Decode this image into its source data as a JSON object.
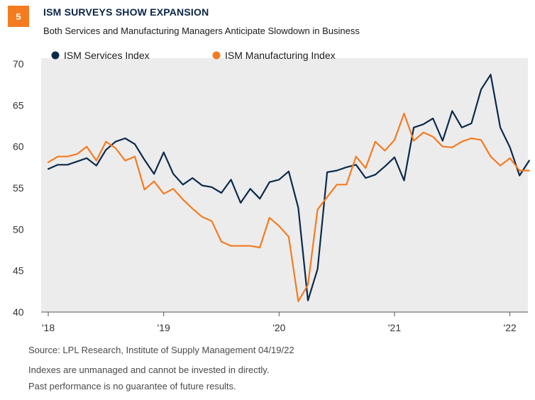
{
  "header": {
    "badge": "5",
    "title": "ISM SURVEYS SHOW EXPANSION",
    "subtitle": "Both Services and Manufacturing Managers Anticipate Slowdown in Business"
  },
  "footnotes": [
    "Source: LPL Research, Institute of Supply Management 04/19/22",
    "Indexes are unmanaged and cannot be invested in directly.",
    "Past performance is no guarantee of future results."
  ],
  "colors": {
    "services": "#0b2a4a",
    "manufacturing": "#f47b20",
    "badge": "#f47b20",
    "plot_bg": "#ececec"
  },
  "chart_data": {
    "type": "line",
    "title": "ISM SURVEYS SHOW EXPANSION",
    "subtitle": "Both Services and Manufacturing Managers Anticipate Slowdown in Business",
    "xlabel": "",
    "ylabel": "",
    "ylim": [
      40,
      70
    ],
    "yticks": [
      40,
      45,
      50,
      55,
      60,
      65,
      70
    ],
    "xticks": [
      "'18",
      "'19",
      "'20",
      "'21",
      "'22"
    ],
    "x": [
      "2018-01",
      "2018-02",
      "2018-03",
      "2018-04",
      "2018-05",
      "2018-06",
      "2018-07",
      "2018-08",
      "2018-09",
      "2018-10",
      "2018-11",
      "2018-12",
      "2019-01",
      "2019-02",
      "2019-03",
      "2019-04",
      "2019-05",
      "2019-06",
      "2019-07",
      "2019-08",
      "2019-09",
      "2019-10",
      "2019-11",
      "2019-12",
      "2020-01",
      "2020-02",
      "2020-03",
      "2020-04",
      "2020-05",
      "2020-06",
      "2020-07",
      "2020-08",
      "2020-09",
      "2020-10",
      "2020-11",
      "2020-12",
      "2021-01",
      "2021-02",
      "2021-03",
      "2021-04",
      "2021-05",
      "2021-06",
      "2021-07",
      "2021-08",
      "2021-09",
      "2021-10",
      "2021-11",
      "2021-12",
      "2022-01",
      "2022-02",
      "2022-03"
    ],
    "grid": false,
    "legend": "top-left",
    "series": [
      {
        "name": "ISM Services Index",
        "values": [
          57.3,
          57.8,
          57.8,
          58.2,
          58.6,
          57.7,
          59.6,
          60.6,
          61.0,
          60.3,
          58.4,
          56.7,
          59.3,
          56.7,
          55.4,
          56.2,
          55.3,
          55.1,
          54.4,
          56.0,
          53.2,
          54.9,
          53.7,
          55.7,
          56.0,
          57.0,
          52.6,
          41.4,
          45.2,
          56.9,
          57.1,
          57.5,
          57.8,
          56.2,
          56.6,
          57.6,
          58.7,
          55.9,
          62.3,
          62.7,
          63.4,
          60.7,
          64.3,
          62.3,
          62.8,
          66.9,
          68.7,
          62.3,
          59.9,
          56.5,
          58.3
        ]
      },
      {
        "name": "ISM Manufacturing Index",
        "values": [
          58.1,
          58.8,
          58.8,
          59.1,
          60.0,
          58.3,
          60.6,
          59.8,
          58.3,
          58.8,
          54.8,
          55.8,
          54.3,
          54.9,
          53.6,
          52.5,
          51.5,
          51.0,
          48.5,
          48.0,
          48.0,
          48.0,
          47.8,
          51.4,
          50.4,
          49.1,
          41.3,
          43.3,
          52.4,
          53.9,
          55.4,
          55.4,
          58.8,
          57.4,
          60.6,
          59.5,
          60.8,
          64.0,
          60.7,
          61.7,
          61.2,
          60.0,
          59.9,
          60.6,
          61.0,
          60.8,
          58.8,
          57.7,
          58.6,
          57.1,
          57.1
        ]
      }
    ]
  }
}
